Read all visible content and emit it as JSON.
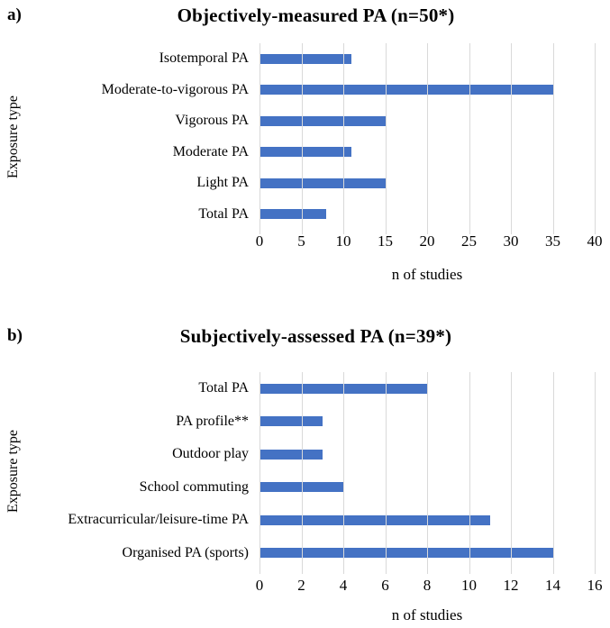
{
  "chart_data": [
    {
      "type": "bar",
      "orientation": "horizontal",
      "panel_label": "a)",
      "title": "Objectively-measured PA (n=50*)",
      "ylabel": "Exposure type",
      "xlabel": "n of studies",
      "categories": [
        "Isotemporal PA",
        "Moderate-to-vigorous PA",
        "Vigorous PA",
        "Moderate PA",
        "Light PA",
        "Total PA"
      ],
      "values": [
        11,
        35,
        15,
        11,
        15,
        8
      ],
      "xticks": [
        0,
        5,
        10,
        15,
        20,
        25,
        30,
        35,
        40
      ],
      "xlim": [
        0,
        40
      ],
      "grid": true,
      "legend": false,
      "bar_color": "#4472C4",
      "gridline_color": "#D9D9D9"
    },
    {
      "type": "bar",
      "orientation": "horizontal",
      "panel_label": "b)",
      "title": "Subjectively-assessed PA (n=39*)",
      "ylabel": "Exposure type",
      "xlabel": "n of studies",
      "categories": [
        "Total PA",
        "PA profile**",
        "Outdoor play",
        "School commuting",
        "Extracurricular/leisure-time PA",
        "Organised PA (sports)"
      ],
      "values": [
        8,
        3,
        3,
        4,
        11,
        14
      ],
      "xticks": [
        0,
        2,
        4,
        6,
        8,
        10,
        12,
        14,
        16
      ],
      "xlim": [
        0,
        16
      ],
      "grid": true,
      "legend": false,
      "bar_color": "#4472C4",
      "gridline_color": "#D9D9D9"
    }
  ]
}
